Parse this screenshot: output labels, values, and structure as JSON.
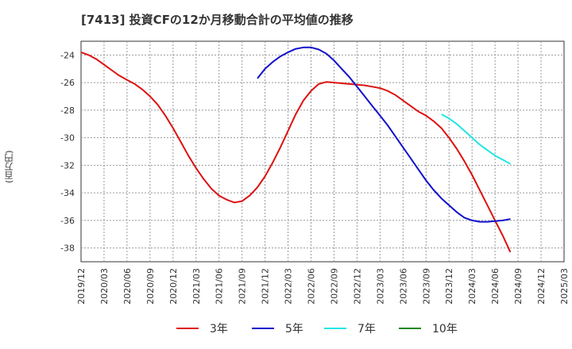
{
  "chart_data": {
    "type": "line",
    "title": "[7413]  投資CFの12か月移動合計の平均値の推移",
    "ylabel": "(百万円)",
    "xlabel": "",
    "ylim": [
      -39,
      -23
    ],
    "yticks": [
      -24,
      -26,
      -28,
      -30,
      -32,
      -34,
      -36,
      -38
    ],
    "x_tick_labels": [
      "2019/12",
      "2020/03",
      "2020/06",
      "2020/09",
      "2020/12",
      "2021/03",
      "2021/06",
      "2021/09",
      "2021/12",
      "2022/03",
      "2022/06",
      "2022/09",
      "2022/12",
      "2023/03",
      "2023/06",
      "2023/09",
      "2023/12",
      "2024/03",
      "2024/06",
      "2024/09",
      "2024/12",
      "2025/03"
    ],
    "grid": true,
    "legend_position": "bottom",
    "series": [
      {
        "name": "3年",
        "color": "#dd1111",
        "points": [
          [
            "2019/12",
            -23.8
          ],
          [
            "2020/01",
            -24.0
          ],
          [
            "2020/02",
            -24.3
          ],
          [
            "2020/03",
            -24.7
          ],
          [
            "2020/04",
            -25.1
          ],
          [
            "2020/05",
            -25.5
          ],
          [
            "2020/06",
            -25.8
          ],
          [
            "2020/07",
            -26.1
          ],
          [
            "2020/08",
            -26.5
          ],
          [
            "2020/09",
            -27.0
          ],
          [
            "2020/10",
            -27.6
          ],
          [
            "2020/11",
            -28.4
          ],
          [
            "2020/12",
            -29.3
          ],
          [
            "2021/01",
            -30.3
          ],
          [
            "2021/02",
            -31.3
          ],
          [
            "2021/03",
            -32.2
          ],
          [
            "2021/04",
            -33.0
          ],
          [
            "2021/05",
            -33.7
          ],
          [
            "2021/06",
            -34.2
          ],
          [
            "2021/07",
            -34.5
          ],
          [
            "2021/08",
            -34.7
          ],
          [
            "2021/09",
            -34.6
          ],
          [
            "2021/10",
            -34.2
          ],
          [
            "2021/11",
            -33.6
          ],
          [
            "2021/12",
            -32.8
          ],
          [
            "2022/01",
            -31.8
          ],
          [
            "2022/02",
            -30.7
          ],
          [
            "2022/03",
            -29.5
          ],
          [
            "2022/04",
            -28.3
          ],
          [
            "2022/05",
            -27.3
          ],
          [
            "2022/06",
            -26.6
          ],
          [
            "2022/07",
            -26.1
          ],
          [
            "2022/08",
            -25.95
          ],
          [
            "2022/09",
            -26.0
          ],
          [
            "2022/10",
            -26.05
          ],
          [
            "2022/11",
            -26.1
          ],
          [
            "2022/12",
            -26.15
          ],
          [
            "2023/01",
            -26.2
          ],
          [
            "2023/02",
            -26.3
          ],
          [
            "2023/03",
            -26.4
          ],
          [
            "2023/04",
            -26.6
          ],
          [
            "2023/05",
            -26.9
          ],
          [
            "2023/06",
            -27.3
          ],
          [
            "2023/07",
            -27.7
          ],
          [
            "2023/08",
            -28.1
          ],
          [
            "2023/09",
            -28.4
          ],
          [
            "2023/10",
            -28.8
          ],
          [
            "2023/11",
            -29.3
          ],
          [
            "2023/12",
            -30.0
          ],
          [
            "2024/01",
            -30.8
          ],
          [
            "2024/02",
            -31.7
          ],
          [
            "2024/03",
            -32.7
          ],
          [
            "2024/04",
            -33.8
          ],
          [
            "2024/05",
            -34.9
          ],
          [
            "2024/06",
            -36.0
          ],
          [
            "2024/07",
            -37.1
          ],
          [
            "2024/08",
            -38.3
          ]
        ]
      },
      {
        "name": "5年",
        "color": "#1111cc",
        "points": [
          [
            "2021/11",
            -25.7
          ],
          [
            "2021/12",
            -25.0
          ],
          [
            "2022/01",
            -24.5
          ],
          [
            "2022/02",
            -24.1
          ],
          [
            "2022/03",
            -23.8
          ],
          [
            "2022/04",
            -23.55
          ],
          [
            "2022/05",
            -23.45
          ],
          [
            "2022/06",
            -23.45
          ],
          [
            "2022/07",
            -23.6
          ],
          [
            "2022/08",
            -23.9
          ],
          [
            "2022/09",
            -24.4
          ],
          [
            "2022/10",
            -25.0
          ],
          [
            "2022/11",
            -25.6
          ],
          [
            "2022/12",
            -26.3
          ],
          [
            "2023/01",
            -27.0
          ],
          [
            "2023/02",
            -27.7
          ],
          [
            "2023/03",
            -28.4
          ],
          [
            "2023/04",
            -29.1
          ],
          [
            "2023/05",
            -29.9
          ],
          [
            "2023/06",
            -30.7
          ],
          [
            "2023/07",
            -31.5
          ],
          [
            "2023/08",
            -32.3
          ],
          [
            "2023/09",
            -33.1
          ],
          [
            "2023/10",
            -33.8
          ],
          [
            "2023/11",
            -34.4
          ],
          [
            "2023/12",
            -34.9
          ],
          [
            "2024/01",
            -35.4
          ],
          [
            "2024/02",
            -35.8
          ],
          [
            "2024/03",
            -36.0
          ],
          [
            "2024/04",
            -36.1
          ],
          [
            "2024/05",
            -36.1
          ],
          [
            "2024/06",
            -36.05
          ],
          [
            "2024/07",
            -36.0
          ],
          [
            "2024/08",
            -35.9
          ]
        ]
      },
      {
        "name": "7年",
        "color": "#22e5e5",
        "points": [
          [
            "2023/11",
            -28.3
          ],
          [
            "2023/12",
            -28.6
          ],
          [
            "2024/01",
            -29.0
          ],
          [
            "2024/02",
            -29.5
          ],
          [
            "2024/03",
            -30.0
          ],
          [
            "2024/04",
            -30.5
          ],
          [
            "2024/05",
            -30.9
          ],
          [
            "2024/06",
            -31.3
          ],
          [
            "2024/07",
            -31.6
          ],
          [
            "2024/08",
            -31.9
          ]
        ]
      },
      {
        "name": "10年",
        "color": "#228822",
        "points": []
      }
    ]
  }
}
